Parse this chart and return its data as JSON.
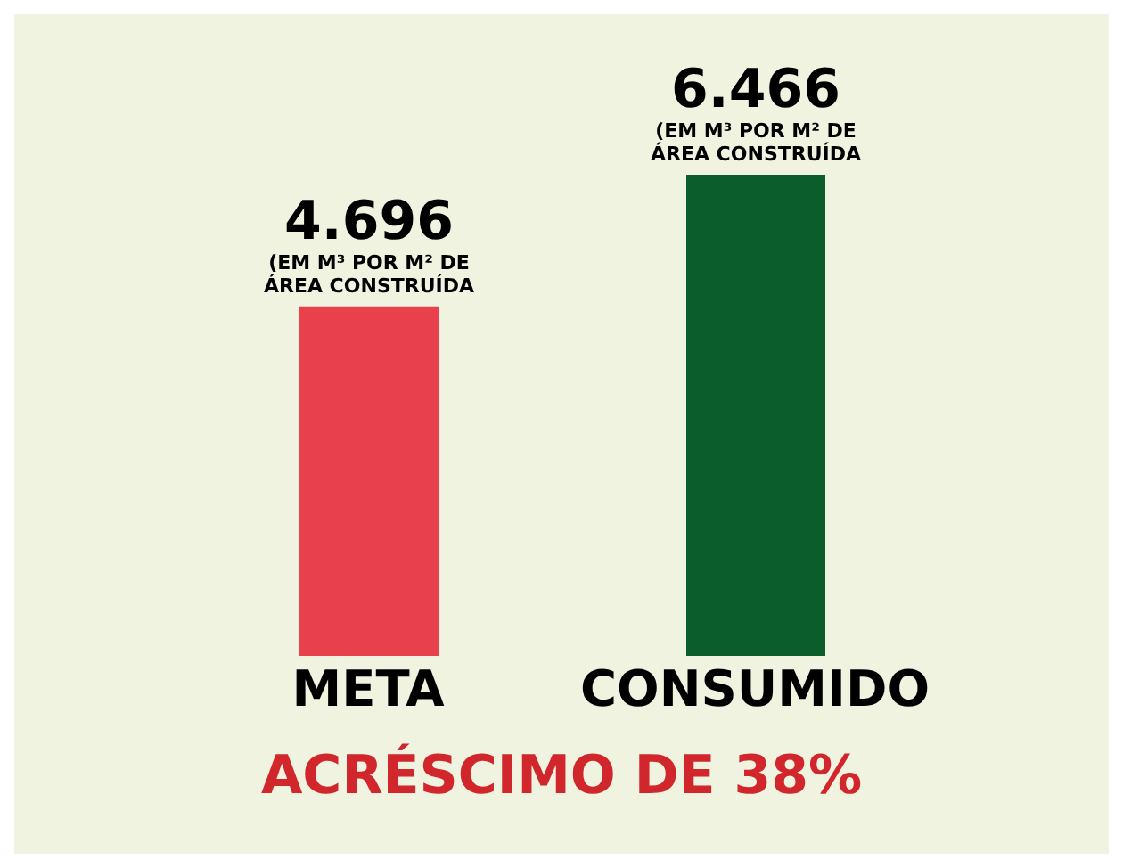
{
  "chart_data": {
    "type": "bar",
    "categories": [
      "META",
      "CONSUMIDO"
    ],
    "values": [
      4.696,
      6.466
    ],
    "colors": [
      "#e8414b",
      "#0b5e2b"
    ],
    "value_labels": [
      "4.696",
      "6.466"
    ],
    "annotations": [
      {
        "text": "(EM M³ POR M² DE ÁREA CONSTRUÍDA",
        "x": "META",
        "y": 4.696
      },
      {
        "text": "(EM M³ POR M² DE ÁREA CONSTRUÍDA",
        "x": "CONSUMIDO",
        "y": 6.466
      },
      "ACRÉSCIMO DE 38%"
    ]
  }
}
